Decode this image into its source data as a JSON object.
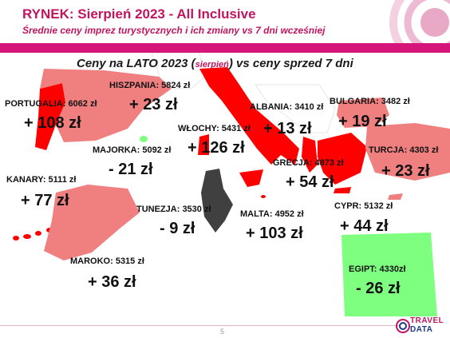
{
  "header": {
    "title": "RYNEK: Sierpień 2023 - All Inclusive",
    "subtitle": "Średnie ceny imprez turystycznych i ich zmiany vs 7 dni wcześniej"
  },
  "map": {
    "heading_main": "Ceny na LATO 2023 (",
    "heading_paren": "sierpień",
    "heading_rest": ") vs ceny sprzed 7 dni",
    "countries": {
      "portugalia": {
        "label": "PORTUGALIA: 6062 zł",
        "change": "+ 108 zł"
      },
      "hiszpania": {
        "label": "HISZPANIA: 5824 zł",
        "change": "+ 23 zł"
      },
      "majorka": {
        "label": "MAJORKA: 5092 zł",
        "change": "- 21 zł"
      },
      "wlochy": {
        "label": "WŁOCHY: 5431 zł",
        "change": "+ 126 zł"
      },
      "albania": {
        "label": "ALBANIA: 3410 zł",
        "change": "+ 13 zł"
      },
      "bulgaria": {
        "label": "BULGARIA: 3482 zł",
        "change": "+ 19 zł"
      },
      "turcja": {
        "label": "TURCJA: 4303 zł",
        "change": "+ 23 zł"
      },
      "grecja": {
        "label": "GRECJA: 4873 zł",
        "change": "+ 54 zł"
      },
      "kanary": {
        "label": "KANARY: 5111 zł",
        "change": "+ 77 zł"
      },
      "tunezja": {
        "label": "TUNEZJA: 3530 zł",
        "change": "- 9 zł"
      },
      "malta": {
        "label": "MALTA: 4952 zł",
        "change": "+ 103 zł"
      },
      "cypr": {
        "label": "CYPR: 5132 zł",
        "change": "+ 44 zł"
      },
      "maroko": {
        "label": "MAROKO: 5315 zł",
        "change": "+ 36 zł"
      },
      "egipt": {
        "label": "EGIPT: 4330zł",
        "change": "- 26 zł"
      }
    }
  },
  "footer": {
    "page_number": "5",
    "logo_line1": "TRAVEL",
    "logo_line2": "DATA"
  },
  "colors": {
    "brand": "#c0155f",
    "increase_strong": "#ff0000",
    "increase_light": "#f08080",
    "decrease": "#7fff7f",
    "neutral_dark": "#404040"
  }
}
